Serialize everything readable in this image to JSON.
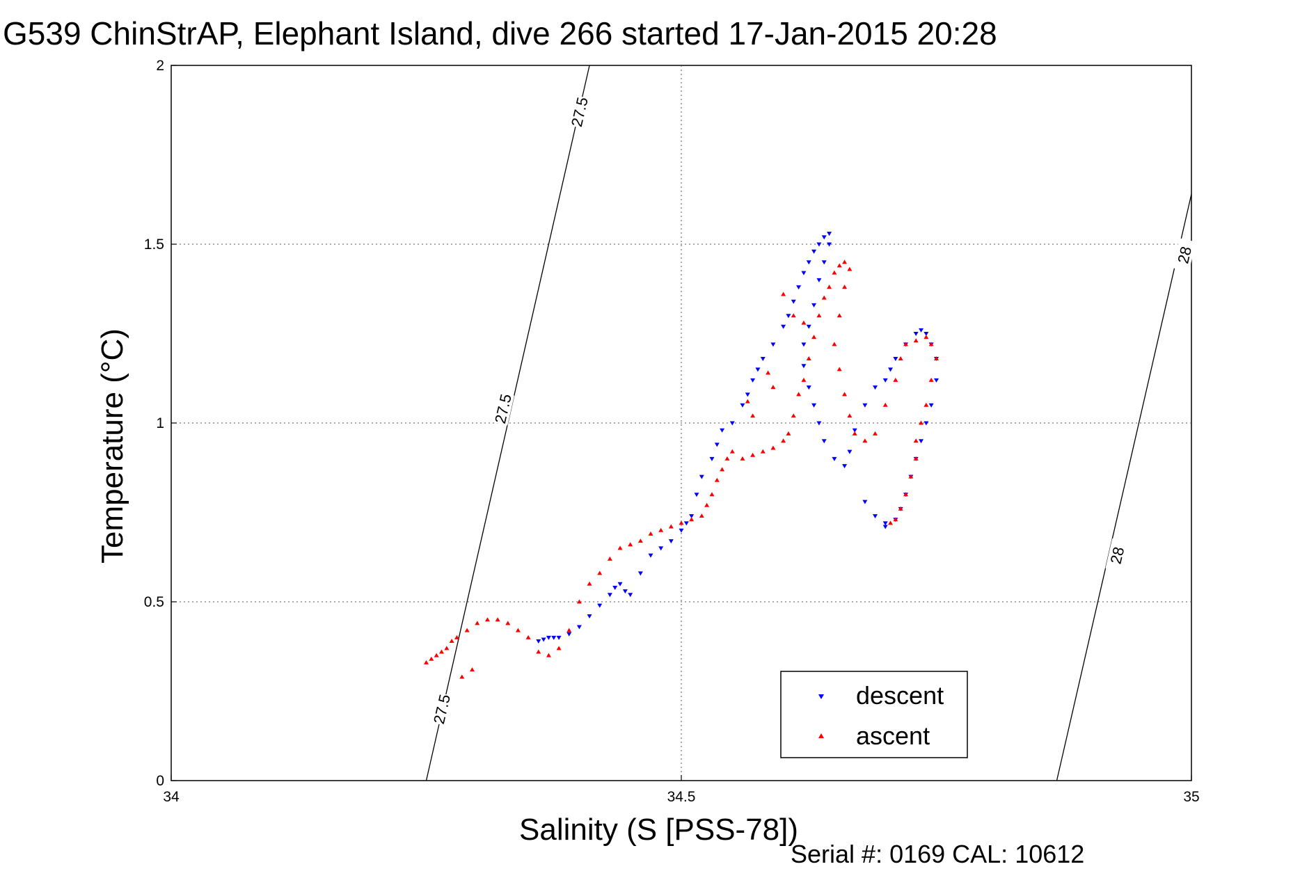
{
  "chart_data": {
    "type": "scatter",
    "title": "G539 ChinStrAP, Elephant Island, dive 266 started 17-Jan-2015 20:28",
    "xlabel": "Salinity (S [PSS-78])",
    "ylabel": "Temperature (°C)",
    "xlim": [
      34,
      35
    ],
    "ylim": [
      0,
      2
    ],
    "x_ticks": [
      "34",
      "34.5",
      "35"
    ],
    "y_ticks": [
      "0",
      "0.5",
      "1",
      "1.5",
      "2"
    ],
    "grid": true,
    "legend_position": "bottom-right",
    "footer": "Serial #: 0169 CAL: 10612",
    "contours": [
      {
        "label": "27.5",
        "points": [
          [
            34.25,
            0.0
          ],
          [
            34.41,
            2.0
          ]
        ],
        "label_positions": [
          [
            34.265,
            0.2
          ],
          [
            34.325,
            1.04
          ],
          [
            34.4,
            1.87
          ]
        ]
      },
      {
        "label": "28",
        "points": [
          [
            34.868,
            0.0
          ],
          [
            35.0,
            1.64
          ]
        ],
        "label_positions": [
          [
            34.927,
            0.63
          ],
          [
            34.993,
            1.47
          ]
        ]
      }
    ],
    "series": [
      {
        "name": "descent",
        "color": "#0000ff",
        "marker": "triangle-down",
        "x": [
          34.36,
          34.365,
          34.37,
          34.375,
          34.38,
          34.39,
          34.4,
          34.41,
          34.42,
          34.43,
          34.435,
          34.44,
          34.445,
          34.45,
          34.46,
          34.47,
          34.48,
          34.49,
          34.5,
          34.505,
          34.51,
          34.515,
          34.52,
          34.53,
          34.535,
          34.54,
          34.55,
          34.56,
          34.565,
          34.57,
          34.575,
          34.58,
          34.59,
          34.6,
          34.605,
          34.61,
          34.615,
          34.62,
          34.625,
          34.63,
          34.635,
          34.64,
          34.645,
          34.645,
          34.64,
          34.635,
          34.63,
          34.625,
          34.62,
          34.62,
          34.625,
          34.63,
          34.635,
          34.64,
          34.65,
          34.66,
          34.665,
          34.67,
          34.68,
          34.69,
          34.7,
          34.705,
          34.71,
          34.72,
          34.73,
          34.735,
          34.74,
          34.745,
          34.75,
          34.75,
          34.745,
          34.74,
          34.735,
          34.73,
          34.725,
          34.72,
          34.715,
          34.71,
          34.7,
          34.7,
          34.69,
          34.68
        ],
        "y": [
          0.39,
          0.395,
          0.4,
          0.4,
          0.4,
          0.41,
          0.43,
          0.46,
          0.49,
          0.52,
          0.54,
          0.55,
          0.53,
          0.52,
          0.58,
          0.63,
          0.65,
          0.67,
          0.7,
          0.72,
          0.74,
          0.8,
          0.85,
          0.9,
          0.94,
          0.98,
          1.0,
          1.05,
          1.08,
          1.12,
          1.15,
          1.18,
          1.22,
          1.27,
          1.3,
          1.34,
          1.38,
          1.42,
          1.45,
          1.48,
          1.5,
          1.52,
          1.53,
          1.5,
          1.45,
          1.4,
          1.33,
          1.27,
          1.22,
          1.16,
          1.1,
          1.05,
          1.0,
          0.95,
          0.9,
          0.88,
          0.92,
          0.98,
          1.05,
          1.1,
          1.12,
          1.15,
          1.18,
          1.22,
          1.25,
          1.26,
          1.25,
          1.22,
          1.18,
          1.12,
          1.05,
          1.0,
          0.95,
          0.9,
          0.85,
          0.8,
          0.76,
          0.73,
          0.72,
          0.71,
          0.74,
          0.78
        ]
      },
      {
        "name": "ascent",
        "color": "#ff0000",
        "marker": "triangle-up",
        "x": [
          34.25,
          34.255,
          34.26,
          34.265,
          34.27,
          34.275,
          34.28,
          34.29,
          34.3,
          34.31,
          34.32,
          34.33,
          34.34,
          34.35,
          34.36,
          34.37,
          34.38,
          34.39,
          34.4,
          34.41,
          34.42,
          34.43,
          34.44,
          34.45,
          34.46,
          34.47,
          34.48,
          34.49,
          34.5,
          34.51,
          34.52,
          34.525,
          34.53,
          34.535,
          34.54,
          34.545,
          34.55,
          34.56,
          34.57,
          34.58,
          34.59,
          34.6,
          34.605,
          34.61,
          34.615,
          34.62,
          34.625,
          34.63,
          34.635,
          34.64,
          34.645,
          34.65,
          34.655,
          34.66,
          34.665,
          34.66,
          34.655,
          34.65,
          34.655,
          34.66,
          34.665,
          34.67,
          34.68,
          34.69,
          34.7,
          34.71,
          34.715,
          34.72,
          34.73,
          34.74,
          34.745,
          34.75,
          34.745,
          34.74,
          34.735,
          34.73,
          34.73,
          34.725,
          34.72,
          34.715,
          34.71,
          34.705,
          34.6,
          34.61,
          34.62,
          34.585,
          34.59,
          34.565,
          34.57,
          34.285,
          34.295
        ],
        "y": [
          0.33,
          0.34,
          0.35,
          0.36,
          0.37,
          0.39,
          0.4,
          0.42,
          0.44,
          0.45,
          0.45,
          0.44,
          0.42,
          0.4,
          0.36,
          0.35,
          0.37,
          0.42,
          0.5,
          0.55,
          0.58,
          0.62,
          0.65,
          0.66,
          0.67,
          0.69,
          0.7,
          0.71,
          0.72,
          0.73,
          0.74,
          0.77,
          0.8,
          0.84,
          0.87,
          0.9,
          0.92,
          0.9,
          0.91,
          0.92,
          0.93,
          0.95,
          0.97,
          1.02,
          1.08,
          1.12,
          1.18,
          1.24,
          1.3,
          1.35,
          1.38,
          1.42,
          1.44,
          1.45,
          1.43,
          1.38,
          1.3,
          1.22,
          1.15,
          1.08,
          1.02,
          0.97,
          0.95,
          0.97,
          1.05,
          1.12,
          1.18,
          1.22,
          1.23,
          1.24,
          1.22,
          1.18,
          1.12,
          1.05,
          1.0,
          0.95,
          0.9,
          0.85,
          0.8,
          0.76,
          0.73,
          0.72,
          1.36,
          1.3,
          1.28,
          1.14,
          1.1,
          1.06,
          1.02,
          0.29,
          0.31
        ]
      }
    ]
  }
}
